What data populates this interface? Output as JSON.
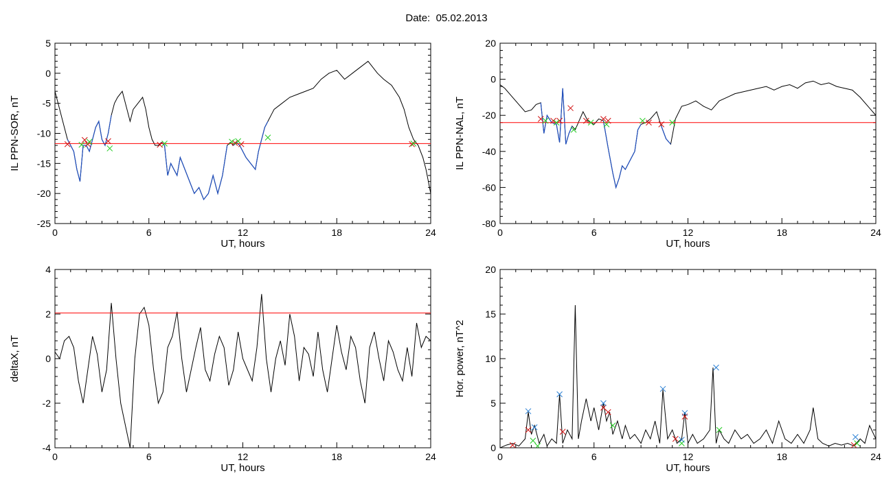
{
  "header": {
    "date_label": "Date:",
    "date_value": "05.02.2013"
  },
  "colors": {
    "axis": "#000000",
    "signal": "#000000",
    "threshold": "#ff0000",
    "highlight": "#1f4fbf",
    "marker_red": "#d01010",
    "marker_green": "#22cc22",
    "marker_blue": "#2a7fd4"
  },
  "chart_data": [
    {
      "type": "line",
      "ylabel": "IL PPN-SOR, nT",
      "xlabel": "UT, hours",
      "xlim": [
        0,
        24
      ],
      "ylim": [
        -25,
        5
      ],
      "xticks": [
        0,
        6,
        12,
        18,
        24
      ],
      "yticks": [
        -25,
        -20,
        -15,
        -10,
        -5,
        0,
        5
      ],
      "threshold": -11.7,
      "series": [
        {
          "x": [
            0,
            0.3,
            0.5,
            0.8,
            1.0,
            1.2,
            1.4,
            1.6,
            1.7,
            1.8,
            2.0,
            2.2,
            2.4,
            2.6,
            2.8,
            3.0,
            3.2,
            3.4,
            3.6,
            3.8,
            4.0,
            4.3,
            4.6,
            4.8,
            5.0,
            5.3,
            5.6,
            5.8,
            6.0,
            6.2,
            6.4,
            6.6,
            6.8,
            7.0,
            7.2,
            7.4,
            7.6,
            7.8,
            8.0,
            8.3,
            8.6,
            8.9,
            9.2,
            9.5,
            9.8,
            10.1,
            10.4,
            10.7,
            11.0,
            11.2,
            11.4,
            11.6,
            11.8,
            12.0,
            12.2,
            12.5,
            12.8,
            13.0,
            13.2,
            13.4,
            13.6,
            13.8,
            14.0,
            14.5,
            15.0,
            15.5,
            16.0,
            16.5,
            17.0,
            17.5,
            18.0,
            18.5,
            19.0,
            19.5,
            20.0,
            20.3,
            20.6,
            21.0,
            21.5,
            22.0,
            22.3,
            22.6,
            22.9,
            23.2,
            23.5,
            23.7,
            24.0
          ],
          "y": [
            -3,
            -6,
            -8,
            -11,
            -12,
            -13,
            -16,
            -18,
            -15,
            -12,
            -12,
            -13,
            -11,
            -9,
            -8,
            -11,
            -12,
            -10,
            -7,
            -5,
            -4,
            -3,
            -6,
            -8,
            -6,
            -5,
            -4,
            -6,
            -9,
            -11,
            -12,
            -12,
            -11.5,
            -12,
            -17,
            -15,
            -16,
            -17,
            -14,
            -16,
            -18,
            -20,
            -19,
            -21,
            -20,
            -17,
            -20,
            -17,
            -12,
            -11.5,
            -12,
            -11.5,
            -12,
            -13,
            -14,
            -15,
            -16,
            -13,
            -11,
            -9,
            -8,
            -7,
            -6,
            -5,
            -4,
            -3.5,
            -3,
            -2.5,
            -1,
            0,
            0.5,
            -1,
            0,
            1,
            2,
            1,
            0,
            -1,
            -2,
            -4,
            -6,
            -9,
            -11,
            -12,
            -14,
            -16,
            -20
          ]
        }
      ],
      "highlight_ranges": [
        [
          0.8,
          3.6
        ],
        [
          6.7,
          11.1
        ],
        [
          11.3,
          13.6
        ]
      ],
      "markers_red": [
        [
          0.8,
          -11.8
        ],
        [
          1.9,
          -11.1
        ],
        [
          2.1,
          -11.8
        ],
        [
          3.4,
          -11.3
        ],
        [
          6.7,
          -11.9
        ],
        [
          11.5,
          -11.6
        ],
        [
          11.9,
          -11.8
        ],
        [
          22.8,
          -11.8
        ]
      ],
      "markers_green": [
        [
          1.7,
          -11.9
        ],
        [
          2.2,
          -11.4
        ],
        [
          3.5,
          -12.5
        ],
        [
          7.0,
          -11.7
        ],
        [
          11.3,
          -11.4
        ],
        [
          11.7,
          -11.3
        ],
        [
          13.6,
          -10.7
        ],
        [
          22.9,
          -11.7
        ]
      ]
    },
    {
      "type": "line",
      "ylabel": "IL PPN-NAL, nT",
      "xlabel": "UT, hours",
      "xlim": [
        0,
        24
      ],
      "ylim": [
        -80,
        20
      ],
      "xticks": [
        0,
        6,
        12,
        18,
        24
      ],
      "yticks": [
        -80,
        -60,
        -40,
        -20,
        0,
        20
      ],
      "threshold": -24,
      "series": [
        {
          "x": [
            0,
            0.3,
            0.6,
            1.0,
            1.3,
            1.6,
            2.0,
            2.3,
            2.6,
            2.8,
            3.0,
            3.3,
            3.6,
            3.8,
            4.0,
            4.2,
            4.4,
            4.6,
            4.8,
            5.0,
            5.3,
            5.6,
            6.0,
            6.3,
            6.6,
            6.9,
            7.2,
            7.4,
            7.6,
            7.8,
            8.0,
            8.3,
            8.6,
            8.8,
            9.0,
            9.3,
            9.6,
            10.0,
            10.3,
            10.6,
            10.9,
            11.2,
            11.6,
            12.0,
            12.5,
            13.0,
            13.5,
            14.0,
            14.5,
            15.0,
            15.5,
            16.0,
            16.5,
            17.0,
            17.5,
            18.0,
            18.5,
            19.0,
            19.5,
            20.0,
            20.5,
            21.0,
            21.5,
            22.0,
            22.5,
            23.0,
            23.5,
            24.0
          ],
          "y": [
            -3,
            -5,
            -8,
            -12,
            -15,
            -18,
            -17,
            -14,
            -13,
            -30,
            -20,
            -24,
            -25,
            -35,
            -5,
            -36,
            -30,
            -26,
            -28,
            -24,
            -18,
            -23,
            -25,
            -22,
            -23,
            -38,
            -52,
            -60,
            -55,
            -48,
            -50,
            -45,
            -40,
            -28,
            -25,
            -24,
            -22,
            -18,
            -26,
            -33,
            -36,
            -22,
            -15,
            -14,
            -12,
            -15,
            -17,
            -12,
            -10,
            -8,
            -7,
            -6,
            -5,
            -4,
            -6,
            -4,
            -3,
            -5,
            -2,
            -1,
            -3,
            -2,
            -4,
            -5,
            -6,
            -10,
            -15,
            -20
          ]
        }
      ],
      "highlight_ranges": [
        [
          2.6,
          4.7
        ],
        [
          6.5,
          9.0
        ],
        [
          10.2,
          11.1
        ]
      ],
      "markers_red": [
        [
          2.6,
          -22
        ],
        [
          3.4,
          -23
        ],
        [
          3.8,
          -23
        ],
        [
          4.5,
          -16
        ],
        [
          5.5,
          -23
        ],
        [
          6.6,
          -22
        ],
        [
          6.9,
          -23
        ],
        [
          9.5,
          -24
        ],
        [
          10.3,
          -25
        ]
      ],
      "markers_green": [
        [
          2.9,
          -23
        ],
        [
          3.6,
          -24
        ],
        [
          4.7,
          -28
        ],
        [
          5.8,
          -24
        ],
        [
          6.8,
          -25
        ],
        [
          9.1,
          -23
        ],
        [
          11.0,
          -24
        ]
      ]
    },
    {
      "type": "line",
      "ylabel": "deltaX, nT",
      "xlabel": "UT, hours",
      "xlim": [
        0,
        24
      ],
      "ylim": [
        -4,
        4
      ],
      "xticks": [
        0,
        6,
        12,
        18,
        24
      ],
      "yticks": [
        -4,
        -2,
        0,
        2,
        4
      ],
      "threshold": 2.05,
      "series": [
        {
          "x": [
            0,
            0.3,
            0.6,
            0.9,
            1.2,
            1.5,
            1.8,
            2.1,
            2.4,
            2.7,
            3.0,
            3.3,
            3.6,
            3.9,
            4.2,
            4.5,
            4.8,
            5.1,
            5.4,
            5.7,
            6.0,
            6.3,
            6.6,
            6.9,
            7.2,
            7.5,
            7.8,
            8.1,
            8.4,
            8.7,
            9.0,
            9.3,
            9.6,
            9.9,
            10.2,
            10.5,
            10.8,
            11.1,
            11.4,
            11.7,
            12.0,
            12.3,
            12.6,
            12.9,
            13.2,
            13.5,
            13.8,
            14.1,
            14.4,
            14.7,
            15.0,
            15.3,
            15.6,
            15.9,
            16.2,
            16.5,
            16.8,
            17.1,
            17.4,
            17.7,
            18.0,
            18.3,
            18.6,
            18.9,
            19.2,
            19.5,
            19.8,
            20.1,
            20.4,
            20.7,
            21.0,
            21.3,
            21.6,
            21.9,
            22.2,
            22.5,
            22.8,
            23.1,
            23.4,
            23.7,
            24.0
          ],
          "y": [
            0.3,
            0,
            0.8,
            1,
            0.5,
            -1,
            -2,
            -0.5,
            1,
            0.2,
            -1.5,
            -0.5,
            2.5,
            0,
            -2,
            -3,
            -4,
            0,
            2,
            2.3,
            1.5,
            -0.5,
            -2,
            -1.5,
            0.5,
            1,
            2.1,
            0,
            -1.5,
            -0.5,
            0.5,
            1.4,
            -0.5,
            -1,
            0.2,
            1,
            0.5,
            -1.2,
            -0.5,
            1.2,
            0,
            -0.5,
            -1,
            0.5,
            2.9,
            0,
            -1.5,
            0,
            0.8,
            -0.3,
            2,
            1,
            -1,
            0.5,
            0.2,
            -0.8,
            1.2,
            -0.5,
            -1.5,
            0,
            1.5,
            0.3,
            -0.5,
            1,
            0.5,
            -1,
            -2,
            0.5,
            1.2,
            0,
            -1,
            0.8,
            0.3,
            -0.5,
            -1,
            0.5,
            -0.8,
            1.6,
            0.5,
            1,
            0.8
          ]
        }
      ]
    },
    {
      "type": "line",
      "ylabel": "Hor. power, nT^2",
      "xlabel": "UT, hours",
      "xlim": [
        0,
        24
      ],
      "ylim": [
        0,
        20
      ],
      "xticks": [
        0,
        6,
        12,
        18,
        24
      ],
      "yticks": [
        0,
        5,
        10,
        15,
        20
      ],
      "series": [
        {
          "x": [
            0,
            0.4,
            0.8,
            1.2,
            1.6,
            1.8,
            2.0,
            2.2,
            2.5,
            2.8,
            3.0,
            3.3,
            3.6,
            3.8,
            4.0,
            4.3,
            4.6,
            4.8,
            5.0,
            5.2,
            5.5,
            5.8,
            6.0,
            6.3,
            6.6,
            6.8,
            7.0,
            7.2,
            7.5,
            7.8,
            8.0,
            8.3,
            8.6,
            9.0,
            9.3,
            9.6,
            9.9,
            10.2,
            10.4,
            10.7,
            11.0,
            11.3,
            11.6,
            11.8,
            12.0,
            12.3,
            12.6,
            13.0,
            13.4,
            13.6,
            13.8,
            14.0,
            14.3,
            14.6,
            15.0,
            15.4,
            15.8,
            16.2,
            16.6,
            17.0,
            17.4,
            17.8,
            18.2,
            18.6,
            19.0,
            19.4,
            19.8,
            20.0,
            20.3,
            20.6,
            21.0,
            21.4,
            21.8,
            22.2,
            22.6,
            23.0,
            23.3,
            23.6,
            24.0
          ],
          "y": [
            0,
            0.3,
            0.5,
            0.2,
            1,
            4,
            1.5,
            2.5,
            0.5,
            1.5,
            0.2,
            1,
            0.5,
            6,
            0.5,
            2,
            1,
            16,
            1,
            3,
            5.5,
            3,
            4.5,
            2,
            5,
            3,
            4,
            1.5,
            3,
            1,
            2.5,
            1,
            1.5,
            0.5,
            2,
            1,
            3,
            0.5,
            6.5,
            1,
            2,
            0.5,
            1,
            4,
            0.5,
            1.5,
            0.5,
            1,
            2,
            9,
            0.5,
            2,
            1,
            0.5,
            2,
            1,
            1.5,
            0.5,
            1,
            2,
            0.5,
            3,
            1,
            0.5,
            1.5,
            0.5,
            2,
            4.5,
            1,
            0.5,
            0.2,
            0.5,
            0.3,
            0.5,
            0.2,
            1,
            0.5,
            2.5,
            1
          ]
        }
      ],
      "markers_red": [
        [
          1.8,
          2
        ],
        [
          4.0,
          1.8
        ],
        [
          6.6,
          4.5
        ],
        [
          6.9,
          4
        ],
        [
          11.2,
          1
        ],
        [
          11.8,
          3.5
        ],
        [
          22.6,
          0.3
        ],
        [
          0.8,
          0.3
        ]
      ],
      "markers_green": [
        [
          2.1,
          0.8
        ],
        [
          2.4,
          0.2
        ],
        [
          7.2,
          2.5
        ],
        [
          11.6,
          0.5
        ],
        [
          14.0,
          2
        ],
        [
          22.8,
          0.5
        ]
      ],
      "markers_blue": [
        [
          1.8,
          4.1
        ],
        [
          2.2,
          2.3
        ],
        [
          3.8,
          6
        ],
        [
          6.6,
          5
        ],
        [
          10.4,
          6.6
        ],
        [
          11.8,
          3.9
        ],
        [
          13.8,
          9
        ],
        [
          11.6,
          0.9
        ],
        [
          22.7,
          1.2
        ]
      ]
    }
  ]
}
